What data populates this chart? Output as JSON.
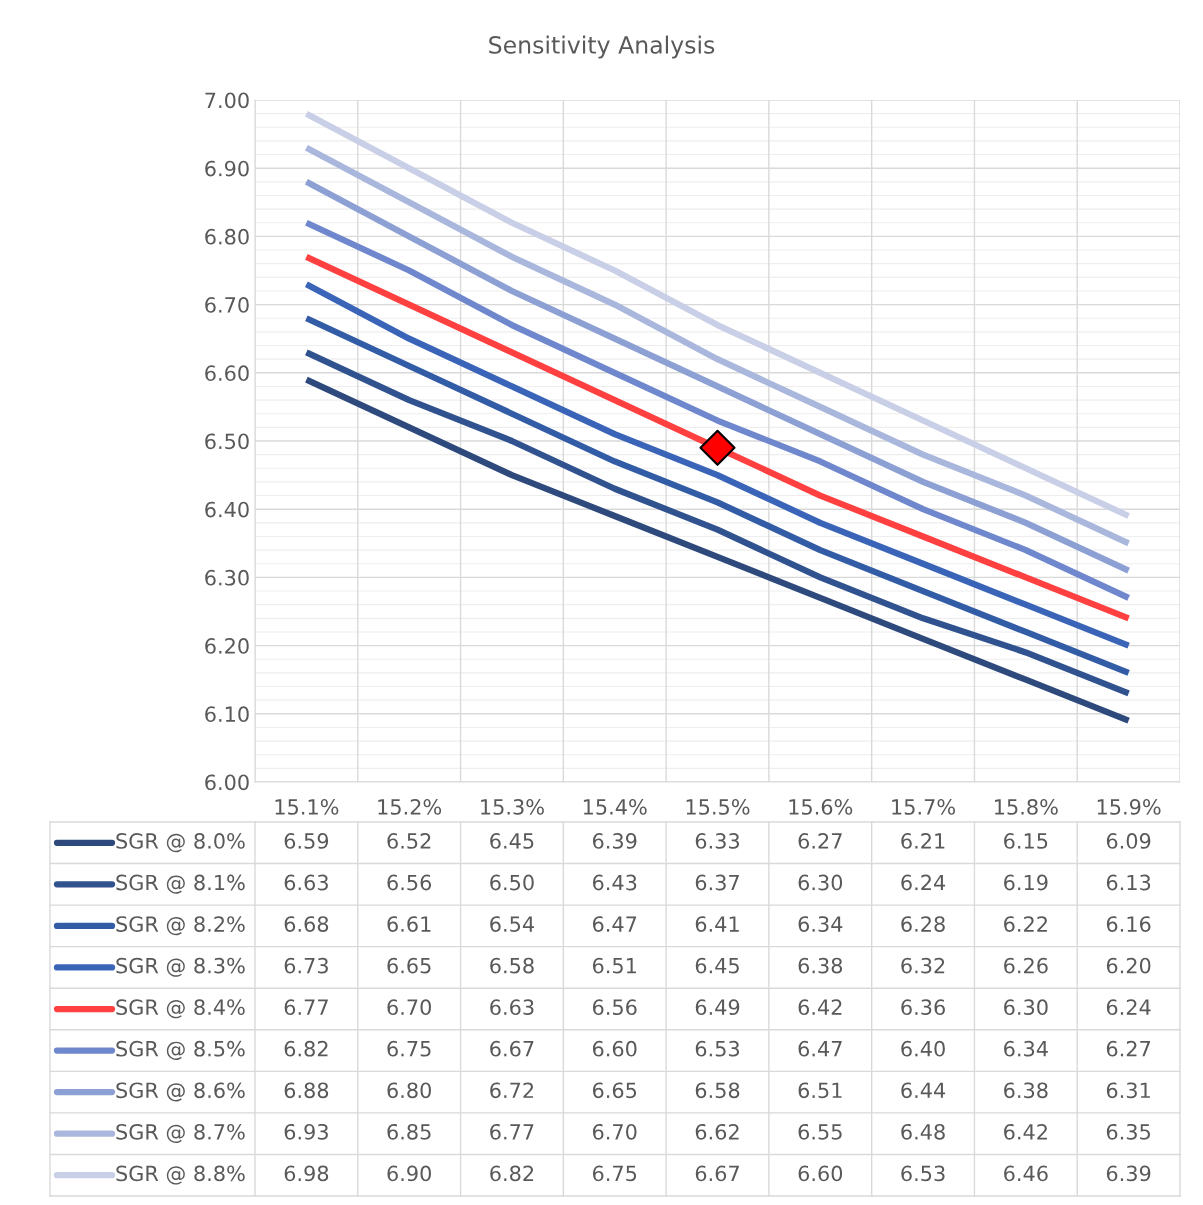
{
  "chart_data": {
    "type": "line",
    "title": "Sensitivity Analysis",
    "categories": [
      "15.1%",
      "15.2%",
      "15.3%",
      "15.4%",
      "15.5%",
      "15.6%",
      "15.7%",
      "15.8%",
      "15.9%"
    ],
    "ylim": [
      6.0,
      7.0
    ],
    "yticks": [
      {
        "value": 6.0,
        "label": "6.00"
      },
      {
        "value": 6.1,
        "label": "6.10"
      },
      {
        "value": 6.2,
        "label": "6.20"
      },
      {
        "value": 6.3,
        "label": "6.30"
      },
      {
        "value": 6.4,
        "label": "6.40"
      },
      {
        "value": 6.5,
        "label": "6.50"
      },
      {
        "value": 6.6,
        "label": "6.60"
      },
      {
        "value": 6.7,
        "label": "6.70"
      },
      {
        "value": 6.8,
        "label": "6.80"
      },
      {
        "value": 6.9,
        "label": "6.90"
      },
      {
        "value": 7.0,
        "label": "7.00"
      }
    ],
    "grid": true,
    "legend": "bottom",
    "marker": "none",
    "line_style": "solid",
    "series": [
      {
        "name": "SGR @ 8.0%",
        "color": "#2e4a7d",
        "values": [
          6.59,
          6.52,
          6.45,
          6.39,
          6.33,
          6.27,
          6.21,
          6.15,
          6.09
        ],
        "value_labels": [
          "6.59",
          "6.52",
          "6.45",
          "6.39",
          "6.33",
          "6.27",
          "6.21",
          "6.15",
          "6.09"
        ]
      },
      {
        "name": "SGR @ 8.1%",
        "color": "#30528f",
        "values": [
          6.63,
          6.56,
          6.5,
          6.43,
          6.37,
          6.3,
          6.24,
          6.19,
          6.13
        ],
        "value_labels": [
          "6.63",
          "6.56",
          "6.50",
          "6.43",
          "6.37",
          "6.30",
          "6.24",
          "6.19",
          "6.13"
        ]
      },
      {
        "name": "SGR @ 8.2%",
        "color": "#335ca6",
        "values": [
          6.68,
          6.61,
          6.54,
          6.47,
          6.41,
          6.34,
          6.28,
          6.22,
          6.16
        ],
        "value_labels": [
          "6.68",
          "6.61",
          "6.54",
          "6.47",
          "6.41",
          "6.34",
          "6.28",
          "6.22",
          "6.16"
        ]
      },
      {
        "name": "SGR @ 8.3%",
        "color": "#3a64b8",
        "values": [
          6.73,
          6.65,
          6.58,
          6.51,
          6.45,
          6.38,
          6.32,
          6.26,
          6.2
        ],
        "value_labels": [
          "6.73",
          "6.65",
          "6.58",
          "6.51",
          "6.45",
          "6.38",
          "6.32",
          "6.26",
          "6.20"
        ]
      },
      {
        "name": "SGR @ 8.4%",
        "color": "#ff4040",
        "values": [
          6.77,
          6.7,
          6.63,
          6.56,
          6.49,
          6.42,
          6.36,
          6.3,
          6.24
        ],
        "value_labels": [
          "6.77",
          "6.70",
          "6.63",
          "6.56",
          "6.49",
          "6.42",
          "6.36",
          "6.30",
          "6.24"
        ]
      },
      {
        "name": "SGR @ 8.5%",
        "color": "#6f87cc",
        "values": [
          6.82,
          6.75,
          6.67,
          6.6,
          6.53,
          6.47,
          6.4,
          6.34,
          6.27
        ],
        "value_labels": [
          "6.82",
          "6.75",
          "6.67",
          "6.60",
          "6.53",
          "6.47",
          "6.40",
          "6.34",
          "6.27"
        ]
      },
      {
        "name": "SGR @ 8.6%",
        "color": "#8da0d4",
        "values": [
          6.88,
          6.8,
          6.72,
          6.65,
          6.58,
          6.51,
          6.44,
          6.38,
          6.31
        ],
        "value_labels": [
          "6.88",
          "6.80",
          "6.72",
          "6.65",
          "6.58",
          "6.51",
          "6.44",
          "6.38",
          "6.31"
        ]
      },
      {
        "name": "SGR @ 8.7%",
        "color": "#aab7dd",
        "values": [
          6.93,
          6.85,
          6.77,
          6.7,
          6.62,
          6.55,
          6.48,
          6.42,
          6.35
        ],
        "value_labels": [
          "6.93",
          "6.85",
          "6.77",
          "6.70",
          "6.62",
          "6.55",
          "6.48",
          "6.42",
          "6.35"
        ]
      },
      {
        "name": "SGR @ 8.8%",
        "color": "#c8cfe6",
        "values": [
          6.98,
          6.9,
          6.82,
          6.75,
          6.67,
          6.6,
          6.53,
          6.46,
          6.39
        ],
        "value_labels": [
          "6.98",
          "6.90",
          "6.82",
          "6.75",
          "6.67",
          "6.60",
          "6.53",
          "6.46",
          "6.39"
        ]
      },
      {
        "type": "scatter",
        "marker": "diamond",
        "color": "#ff0000",
        "x": [
          "15.5%"
        ],
        "values": [
          6.49
        ]
      }
    ]
  }
}
